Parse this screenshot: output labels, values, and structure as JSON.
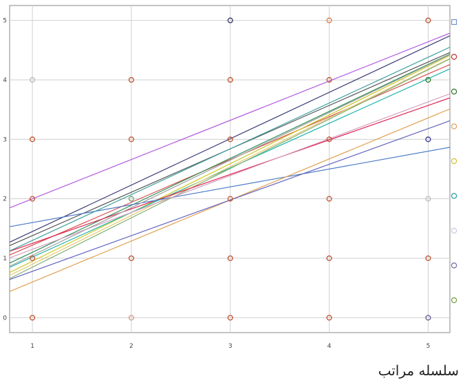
{
  "chart_data": {
    "type": "scatter",
    "title": "",
    "xlabel": "سلسله مراتب",
    "ylabel": "",
    "xlim": [
      0.77,
      5.22
    ],
    "ylim": [
      -0.25,
      5.25
    ],
    "grid": true,
    "x_ticks": [
      1,
      2,
      3,
      4,
      5
    ],
    "y_ticks": [
      0,
      1,
      2,
      3,
      4,
      5
    ],
    "points": [
      {
        "x": 1,
        "y": 0,
        "color": "#c0522e"
      },
      {
        "x": 1,
        "y": 1,
        "color": "#c0522e"
      },
      {
        "x": 1,
        "y": 2,
        "color": "#c0522e"
      },
      {
        "x": 1,
        "y": 3,
        "color": "#c0522e"
      },
      {
        "x": 1,
        "y": 4,
        "color": "#bbbbbb"
      },
      {
        "x": 2,
        "y": 0,
        "color": "#d49a8a"
      },
      {
        "x": 2,
        "y": 1,
        "color": "#c0522e"
      },
      {
        "x": 2,
        "y": 2,
        "color": "#6aa56a"
      },
      {
        "x": 2,
        "y": 3,
        "color": "#c0522e"
      },
      {
        "x": 2,
        "y": 4,
        "color": "#c0522e"
      },
      {
        "x": 3,
        "y": 0,
        "color": "#c0522e"
      },
      {
        "x": 3,
        "y": 1,
        "color": "#c0522e"
      },
      {
        "x": 3,
        "y": 2,
        "color": "#c0522e"
      },
      {
        "x": 3,
        "y": 3,
        "color": "#c0522e"
      },
      {
        "x": 3,
        "y": 4,
        "color": "#c0522e"
      },
      {
        "x": 3,
        "y": 5,
        "color": "#333366"
      },
      {
        "x": 4,
        "y": 0,
        "color": "#c0522e"
      },
      {
        "x": 4,
        "y": 1,
        "color": "#c0522e"
      },
      {
        "x": 4,
        "y": 2,
        "color": "#c0522e"
      },
      {
        "x": 4,
        "y": 3,
        "color": "#c0522e"
      },
      {
        "x": 4,
        "y": 4,
        "color": "#c0522e"
      },
      {
        "x": 4,
        "y": 5,
        "color": "#e07a3a"
      },
      {
        "x": 5,
        "y": 0,
        "color": "#6a5a9a"
      },
      {
        "x": 5,
        "y": 1,
        "color": "#c0522e"
      },
      {
        "x": 5,
        "y": 2,
        "color": "#bbbbbb"
      },
      {
        "x": 5,
        "y": 3,
        "color": "#333399"
      },
      {
        "x": 5,
        "y": 4,
        "color": "#2f7f2f"
      },
      {
        "x": 5,
        "y": 5,
        "color": "#c0522e"
      }
    ],
    "fit_lines": [
      {
        "y_at_x1": 2.0,
        "slope": 0.66,
        "color": "#b058e0"
      },
      {
        "y_at_x1": 1.45,
        "slope": 0.78,
        "color": "#3c3c78"
      },
      {
        "y_at_x1": 1.38,
        "slope": 0.73,
        "color": "#555555"
      },
      {
        "y_at_x1": 1.22,
        "slope": 0.72,
        "color": "#d45050"
      },
      {
        "y_at_x1": 1.1,
        "slope": 0.79,
        "color": "#2e8b57"
      },
      {
        "y_at_x1": 0.95,
        "slope": 0.82,
        "color": "#c8c820"
      },
      {
        "y_at_x1": 1.02,
        "slope": 0.75,
        "color": "#20b2aa"
      },
      {
        "y_at_x1": 0.9,
        "slope": 0.82,
        "color": "#e8c870"
      },
      {
        "y_at_x1": 0.85,
        "slope": 0.83,
        "color": "#7fb070"
      },
      {
        "y_at_x1": 1.25,
        "slope": 0.58,
        "color": "#e02050"
      },
      {
        "y_at_x1": 1.6,
        "slope": 0.3,
        "color": "#4a7ac8"
      },
      {
        "y_at_x1": 0.6,
        "slope": 0.69,
        "color": "#e0a050"
      },
      {
        "y_at_x1": 0.78,
        "slope": 0.6,
        "color": "#6060c0"
      },
      {
        "y_at_x1": 1.15,
        "slope": 0.62,
        "color": "#d0a0c0"
      },
      {
        "y_at_x1": 1.3,
        "slope": 0.77,
        "color": "#40a0a0"
      },
      {
        "y_at_x1": 1.05,
        "slope": 0.8,
        "color": "#a0a0a0"
      }
    ],
    "legend_placement": "right",
    "legend_markers": [
      {
        "color": "#7090c8",
        "shape": "square"
      },
      {
        "color": "#c03030",
        "shape": "circle"
      },
      {
        "color": "#2f6f2f",
        "shape": "circle"
      },
      {
        "color": "#e0a060",
        "shape": "circle"
      },
      {
        "color": "#d0c030",
        "shape": "circle"
      },
      {
        "color": "#20a0a0",
        "shape": "circle"
      },
      {
        "color": "#c8c8e0",
        "shape": "circle"
      },
      {
        "color": "#6a6aa8",
        "shape": "circle"
      },
      {
        "color": "#70a040",
        "shape": "circle"
      }
    ]
  }
}
